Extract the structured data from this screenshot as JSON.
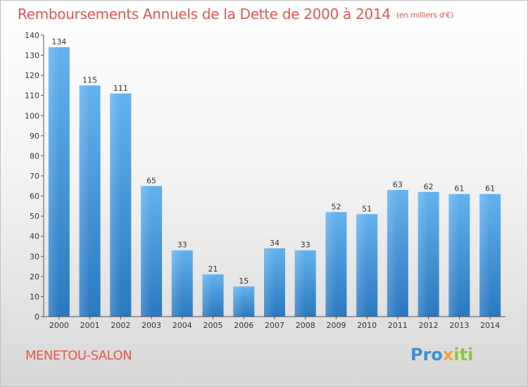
{
  "title": "Remboursements Annuels de la Dette de 2000 à 2014",
  "title_unit": "(en milliers d'€)",
  "town": "MENETOU-SALON",
  "logo": {
    "part1": "Pro",
    "part2": "x",
    "part3": "iti"
  },
  "colors": {
    "title": "#e0584f",
    "bar_top": "#63b2ee",
    "bar_bottom": "#2a78bf"
  },
  "chart_data": {
    "type": "bar",
    "title": "Remboursements Annuels de la Dette de 2000 à 2014",
    "categories": [
      "2000",
      "2001",
      "2002",
      "2003",
      "2004",
      "2005",
      "2006",
      "2007",
      "2008",
      "2009",
      "2010",
      "2011",
      "2012",
      "2013",
      "2014"
    ],
    "values": [
      134,
      115,
      111,
      65,
      33,
      21,
      15,
      34,
      33,
      52,
      51,
      63,
      62,
      61,
      61
    ],
    "ylim": [
      0,
      140
    ],
    "yticks": [
      0,
      10,
      20,
      30,
      40,
      50,
      60,
      70,
      80,
      90,
      100,
      110,
      120,
      130,
      140
    ],
    "grid": false,
    "data_labels": true
  }
}
